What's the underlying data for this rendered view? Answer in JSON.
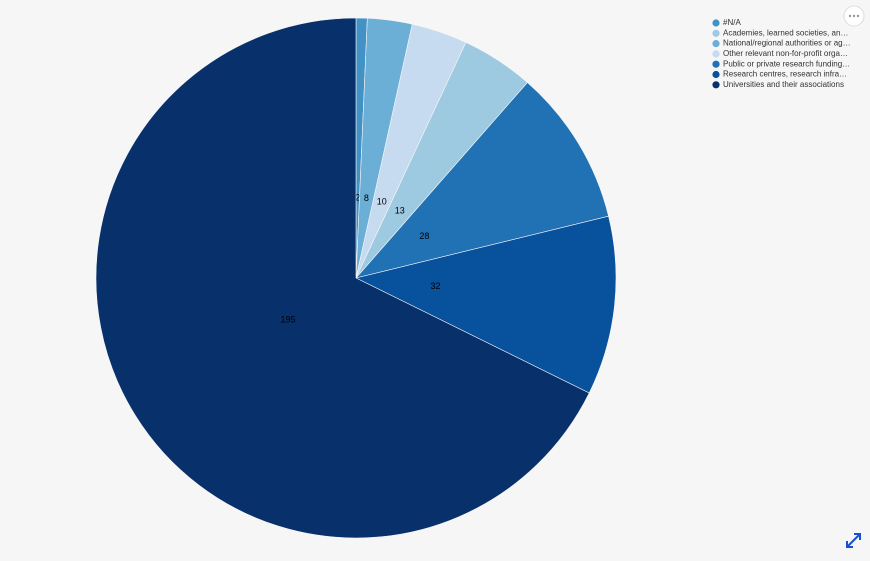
{
  "chart_data": {
    "type": "pie",
    "categories": [
      "#N/A",
      "National/regional authorities or ag…",
      "Other relevant non-for-profit orga…",
      "Academies, learned societies, an…",
      "Public or private research funding…",
      "Research centres, research infra…",
      "Universities and their associations"
    ],
    "values": [
      2,
      8,
      10,
      13,
      28,
      32,
      195
    ],
    "colors": [
      "#4292c6",
      "#6baed6",
      "#c6dbef",
      "#9ecae1",
      "#2171b5",
      "#08519c",
      "#08306b"
    ],
    "legend": "top-right"
  }
}
